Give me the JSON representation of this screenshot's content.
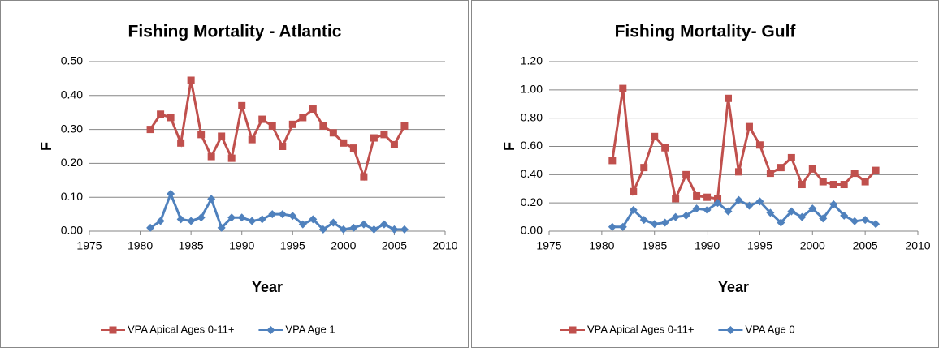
{
  "chart_data": [
    {
      "type": "line",
      "title": "Fishing Mortality - Atlantic",
      "x_label": "Year",
      "y_label": "F",
      "x": [
        1981,
        1982,
        1983,
        1984,
        1985,
        1986,
        1987,
        1988,
        1989,
        1990,
        1991,
        1992,
        1993,
        1994,
        1995,
        1996,
        1997,
        1998,
        1999,
        2000,
        2001,
        2002,
        2003,
        2004,
        2005,
        2006
      ],
      "series": [
        {
          "name": "VPA Apical Ages 0-11+",
          "color": "#c0504d",
          "marker": "square",
          "values": [
            0.3,
            0.345,
            0.335,
            0.26,
            0.445,
            0.285,
            0.22,
            0.28,
            0.215,
            0.37,
            0.27,
            0.33,
            0.31,
            0.25,
            0.315,
            0.335,
            0.36,
            0.31,
            0.29,
            0.26,
            0.245,
            0.16,
            0.275,
            0.285,
            0.255,
            0.31
          ]
        },
        {
          "name": "VPA Age 1",
          "color": "#4f81bd",
          "marker": "diamond",
          "values": [
            0.01,
            0.03,
            0.11,
            0.035,
            0.03,
            0.04,
            0.095,
            0.01,
            0.04,
            0.04,
            0.03,
            0.035,
            0.05,
            0.05,
            0.045,
            0.02,
            0.035,
            0.005,
            0.025,
            0.005,
            0.01,
            0.02,
            0.005,
            0.02,
            0.005,
            0.005
          ]
        }
      ],
      "xlim": [
        1975,
        2010
      ],
      "xticks": [
        1975,
        1980,
        1985,
        1990,
        1995,
        2000,
        2005,
        2010
      ],
      "ylim": [
        0,
        0.5
      ],
      "yticks": [
        {
          "value": 0,
          "label": "0.00"
        },
        {
          "value": 0.1,
          "label": "0.10"
        },
        {
          "value": 0.2,
          "label": "0.20"
        },
        {
          "value": 0.3,
          "label": "0.30"
        },
        {
          "value": 0.4,
          "label": "0.40"
        },
        {
          "value": 0.5,
          "label": "0.50"
        }
      ],
      "grid": true
    },
    {
      "type": "line",
      "title": "Fishing Mortality- Gulf",
      "x_label": "Year",
      "y_label": "F",
      "x": [
        1981,
        1982,
        1983,
        1984,
        1985,
        1986,
        1987,
        1988,
        1989,
        1990,
        1991,
        1992,
        1993,
        1994,
        1995,
        1996,
        1997,
        1998,
        1999,
        2000,
        2001,
        2002,
        2003,
        2004,
        2005,
        2006
      ],
      "series": [
        {
          "name": "VPA Apical Ages 0-11+",
          "color": "#c0504d",
          "marker": "square",
          "values": [
            0.5,
            1.01,
            0.28,
            0.45,
            0.67,
            0.59,
            0.23,
            0.4,
            0.25,
            0.24,
            0.23,
            0.94,
            0.42,
            0.74,
            0.61,
            0.41,
            0.45,
            0.52,
            0.33,
            0.44,
            0.35,
            0.33,
            0.33,
            0.41,
            0.35,
            0.43
          ]
        },
        {
          "name": "VPA Age 0",
          "color": "#4f81bd",
          "marker": "diamond",
          "values": [
            0.03,
            0.03,
            0.15,
            0.08,
            0.05,
            0.06,
            0.1,
            0.11,
            0.16,
            0.15,
            0.2,
            0.14,
            0.22,
            0.18,
            0.21,
            0.13,
            0.06,
            0.14,
            0.1,
            0.16,
            0.09,
            0.19,
            0.11,
            0.07,
            0.08,
            0.05
          ]
        }
      ],
      "xlim": [
        1975,
        2010
      ],
      "xticks": [
        1975,
        1980,
        1985,
        1990,
        1995,
        2000,
        2005,
        2010
      ],
      "ylim": [
        0,
        1.2
      ],
      "yticks": [
        {
          "value": 0,
          "label": "0.00"
        },
        {
          "value": 0.2,
          "label": "0.20"
        },
        {
          "value": 0.4,
          "label": "0.40"
        },
        {
          "value": 0.6,
          "label": "0.60"
        },
        {
          "value": 0.8,
          "label": "0.80"
        },
        {
          "value": 1.0,
          "label": "1.00"
        },
        {
          "value": 1.2,
          "label": "1.20"
        }
      ],
      "grid": true
    }
  ]
}
